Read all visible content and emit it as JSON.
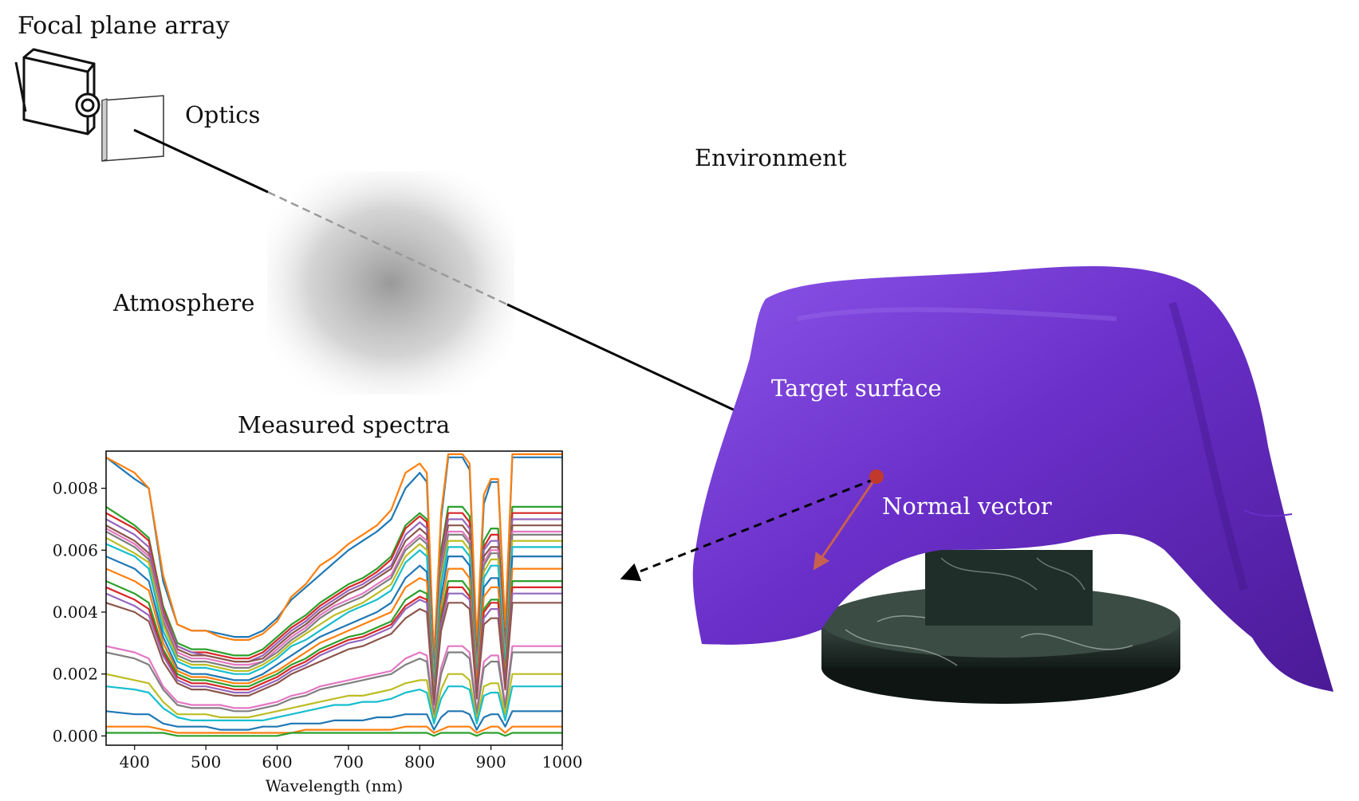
{
  "labels": {
    "focal_plane_array": "Focal plane array",
    "optics": "Optics",
    "environment": "Environment",
    "atmosphere": "Atmosphere",
    "target_surface": "Target surface",
    "normal_vector": "Normal vector",
    "measured_spectra": "Measured spectra"
  },
  "colors": {
    "cloth": "#6a2fc9",
    "cloth_light": "#8b55e8",
    "cloth_dark": "#4a1a96",
    "target_point": "#c0392b",
    "normal_arrow": "#c8604f",
    "marble": "#1f2e28",
    "atmosphere": "#8a8a8a"
  },
  "icons": {
    "camera": "camera-sketch-icon",
    "optics": "optics-plate-icon"
  },
  "chart_data": {
    "type": "line",
    "xlabel": "Wavelength (nm)",
    "ylabel": "",
    "xlim": [
      360,
      1000
    ],
    "ylim": [
      -0.0003,
      0.0092
    ],
    "xticks": [
      400,
      500,
      600,
      700,
      800,
      900,
      1000
    ],
    "yticks": [
      0.0,
      0.002,
      0.004,
      0.006,
      0.008
    ],
    "ytick_labels": [
      "0.000",
      "0.002",
      "0.004",
      "0.006",
      "0.008"
    ],
    "grid": false,
    "legend": "none",
    "series_colors": [
      "#1f77b4",
      "#ff7f0e",
      "#2ca02c",
      "#d62728",
      "#9467bd",
      "#8c564b",
      "#e377c2",
      "#7f7f7f",
      "#bcbd22",
      "#17becf"
    ],
    "x": [
      360,
      400,
      420,
      440,
      460,
      480,
      500,
      520,
      540,
      560,
      580,
      600,
      620,
      640,
      660,
      680,
      700,
      720,
      740,
      760,
      780,
      800,
      810,
      820,
      830,
      840,
      860,
      870,
      880,
      890,
      900,
      910,
      920,
      930,
      960,
      1000
    ],
    "series": [
      {
        "values": [
          0.009,
          0.0083,
          0.008,
          0.005,
          0.0036,
          0.0034,
          0.0034,
          0.0033,
          0.0032,
          0.0032,
          0.0034,
          0.0038,
          0.0044,
          0.0048,
          0.0052,
          0.0056,
          0.006,
          0.0063,
          0.0066,
          0.007,
          0.008,
          0.0085,
          0.0082,
          0.0024,
          0.007,
          0.009,
          0.009,
          0.0086,
          0.0028,
          0.0075,
          0.0082,
          0.0082,
          0.0034,
          0.009,
          0.009,
          0.009
        ]
      },
      {
        "values": [
          0.009,
          0.0085,
          0.008,
          0.0052,
          0.0036,
          0.0034,
          0.0034,
          0.0032,
          0.0031,
          0.0031,
          0.0033,
          0.0037,
          0.0045,
          0.0049,
          0.0055,
          0.0058,
          0.0062,
          0.0065,
          0.0068,
          0.0073,
          0.0085,
          0.0088,
          0.0085,
          0.0025,
          0.0072,
          0.0091,
          0.0091,
          0.0088,
          0.003,
          0.0078,
          0.0083,
          0.0083,
          0.0035,
          0.0091,
          0.0091,
          0.0091
        ]
      },
      {
        "values": [
          0.0074,
          0.0068,
          0.0064,
          0.0042,
          0.003,
          0.0028,
          0.0028,
          0.0027,
          0.0026,
          0.0026,
          0.0028,
          0.0032,
          0.0036,
          0.0039,
          0.0043,
          0.0046,
          0.0049,
          0.0051,
          0.0054,
          0.0058,
          0.0068,
          0.0072,
          0.007,
          0.002,
          0.006,
          0.0074,
          0.0074,
          0.0071,
          0.0024,
          0.0063,
          0.0067,
          0.0067,
          0.0028,
          0.0074,
          0.0074,
          0.0074
        ]
      },
      {
        "values": [
          0.0072,
          0.0067,
          0.0063,
          0.0041,
          0.0029,
          0.0027,
          0.0027,
          0.0026,
          0.0025,
          0.0025,
          0.0027,
          0.0031,
          0.0035,
          0.0038,
          0.0042,
          0.0045,
          0.0048,
          0.005,
          0.0053,
          0.0057,
          0.0067,
          0.0071,
          0.0069,
          0.0019,
          0.0058,
          0.0072,
          0.0072,
          0.0069,
          0.0023,
          0.0061,
          0.0065,
          0.0065,
          0.0027,
          0.0072,
          0.0072,
          0.0072
        ]
      },
      {
        "values": [
          0.007,
          0.0065,
          0.0061,
          0.004,
          0.0029,
          0.0027,
          0.0026,
          0.0025,
          0.0024,
          0.0024,
          0.0026,
          0.003,
          0.0034,
          0.0037,
          0.0041,
          0.0044,
          0.0047,
          0.0049,
          0.0052,
          0.0055,
          0.0065,
          0.0069,
          0.0067,
          0.0019,
          0.0057,
          0.007,
          0.007,
          0.0067,
          0.0022,
          0.006,
          0.0063,
          0.0063,
          0.0026,
          0.007,
          0.007,
          0.007
        ]
      },
      {
        "values": [
          0.0068,
          0.0063,
          0.0059,
          0.0039,
          0.0028,
          0.0026,
          0.0026,
          0.0025,
          0.0024,
          0.0024,
          0.0025,
          0.0029,
          0.0033,
          0.0036,
          0.004,
          0.0043,
          0.0046,
          0.0048,
          0.0051,
          0.0054,
          0.0063,
          0.0067,
          0.0065,
          0.0018,
          0.0055,
          0.0068,
          0.0068,
          0.0065,
          0.0021,
          0.0058,
          0.0061,
          0.0061,
          0.0025,
          0.0068,
          0.0068,
          0.0068
        ]
      },
      {
        "values": [
          0.0067,
          0.0062,
          0.0058,
          0.0038,
          0.0027,
          0.0025,
          0.0025,
          0.0024,
          0.0023,
          0.0023,
          0.0024,
          0.0028,
          0.0032,
          0.0035,
          0.0039,
          0.0042,
          0.0044,
          0.0046,
          0.0049,
          0.0052,
          0.0061,
          0.0065,
          0.0063,
          0.0017,
          0.0054,
          0.0066,
          0.0066,
          0.0063,
          0.002,
          0.0056,
          0.006,
          0.006,
          0.0024,
          0.0066,
          0.0066,
          0.0066
        ]
      },
      {
        "values": [
          0.0066,
          0.0061,
          0.0057,
          0.0037,
          0.0026,
          0.0024,
          0.0024,
          0.0023,
          0.0022,
          0.0022,
          0.0024,
          0.0027,
          0.0031,
          0.0034,
          0.0038,
          0.0041,
          0.0043,
          0.0045,
          0.0048,
          0.0051,
          0.006,
          0.0064,
          0.0062,
          0.0017,
          0.0053,
          0.0065,
          0.0065,
          0.0062,
          0.002,
          0.0055,
          0.0059,
          0.0059,
          0.0024,
          0.0065,
          0.0065,
          0.0065
        ]
      },
      {
        "values": [
          0.0064,
          0.0059,
          0.0056,
          0.0036,
          0.0025,
          0.0023,
          0.0023,
          0.0022,
          0.0021,
          0.0021,
          0.0023,
          0.0026,
          0.003,
          0.0033,
          0.0036,
          0.0039,
          0.0041,
          0.0043,
          0.0046,
          0.0049,
          0.0058,
          0.0062,
          0.006,
          0.0016,
          0.0051,
          0.0063,
          0.0063,
          0.006,
          0.0019,
          0.0053,
          0.0057,
          0.0057,
          0.0023,
          0.0063,
          0.0063,
          0.0063
        ]
      },
      {
        "values": [
          0.0062,
          0.0058,
          0.0054,
          0.0034,
          0.0024,
          0.0022,
          0.0022,
          0.0021,
          0.002,
          0.002,
          0.0022,
          0.0025,
          0.0029,
          0.0031,
          0.0034,
          0.0037,
          0.004,
          0.0042,
          0.0044,
          0.0047,
          0.0056,
          0.006,
          0.0058,
          0.0015,
          0.0049,
          0.0061,
          0.0061,
          0.0058,
          0.0018,
          0.0051,
          0.0055,
          0.0055,
          0.0022,
          0.0061,
          0.0061,
          0.0061
        ]
      },
      {
        "values": [
          0.0058,
          0.0054,
          0.005,
          0.0032,
          0.0022,
          0.002,
          0.002,
          0.0019,
          0.0018,
          0.0018,
          0.002,
          0.0023,
          0.0026,
          0.0029,
          0.0032,
          0.0034,
          0.0036,
          0.0038,
          0.004,
          0.0043,
          0.0051,
          0.0055,
          0.0053,
          0.0014,
          0.0045,
          0.0058,
          0.0058,
          0.0055,
          0.0017,
          0.0048,
          0.0051,
          0.0051,
          0.002,
          0.0058,
          0.0058,
          0.0058
        ]
      },
      {
        "values": [
          0.0054,
          0.005,
          0.0047,
          0.003,
          0.0021,
          0.0019,
          0.0019,
          0.0018,
          0.0017,
          0.0017,
          0.0019,
          0.0021,
          0.0024,
          0.0027,
          0.003,
          0.0032,
          0.0034,
          0.0036,
          0.0038,
          0.004,
          0.0048,
          0.0051,
          0.005,
          0.0013,
          0.0042,
          0.0054,
          0.0054,
          0.0051,
          0.0016,
          0.0045,
          0.0048,
          0.0048,
          0.0019,
          0.0054,
          0.0054,
          0.0054
        ]
      },
      {
        "values": [
          0.005,
          0.0046,
          0.0043,
          0.0028,
          0.002,
          0.0018,
          0.0018,
          0.0017,
          0.0016,
          0.0016,
          0.0018,
          0.002,
          0.0023,
          0.0025,
          0.0028,
          0.003,
          0.0032,
          0.0033,
          0.0035,
          0.0037,
          0.0044,
          0.0047,
          0.0046,
          0.0012,
          0.0039,
          0.005,
          0.005,
          0.0047,
          0.0014,
          0.0041,
          0.0044,
          0.0044,
          0.0018,
          0.005,
          0.005,
          0.005
        ]
      },
      {
        "values": [
          0.0048,
          0.0044,
          0.0041,
          0.0027,
          0.0019,
          0.0017,
          0.0017,
          0.0016,
          0.0015,
          0.0015,
          0.0017,
          0.0019,
          0.0022,
          0.0024,
          0.0027,
          0.0029,
          0.0031,
          0.0032,
          0.0034,
          0.0036,
          0.0042,
          0.0045,
          0.0044,
          0.0011,
          0.0037,
          0.0048,
          0.0048,
          0.0045,
          0.0014,
          0.004,
          0.0043,
          0.0043,
          0.0017,
          0.0048,
          0.0048,
          0.0048
        ]
      },
      {
        "values": [
          0.0046,
          0.0042,
          0.0039,
          0.0026,
          0.0018,
          0.0016,
          0.0016,
          0.0015,
          0.0014,
          0.0014,
          0.0016,
          0.0018,
          0.0021,
          0.0023,
          0.0026,
          0.0028,
          0.003,
          0.0031,
          0.0033,
          0.0035,
          0.0041,
          0.0044,
          0.0043,
          0.0011,
          0.0036,
          0.0046,
          0.0046,
          0.0044,
          0.0013,
          0.0038,
          0.0041,
          0.0041,
          0.0016,
          0.0046,
          0.0046,
          0.0046
        ]
      },
      {
        "values": [
          0.0043,
          0.004,
          0.0037,
          0.0024,
          0.0017,
          0.0015,
          0.0015,
          0.0014,
          0.0013,
          0.0013,
          0.0015,
          0.0017,
          0.002,
          0.0022,
          0.0024,
          0.0026,
          0.0028,
          0.0029,
          0.0031,
          0.0033,
          0.0038,
          0.0041,
          0.004,
          0.001,
          0.0034,
          0.0043,
          0.0043,
          0.0041,
          0.0012,
          0.0036,
          0.0038,
          0.0038,
          0.0015,
          0.0043,
          0.0043,
          0.0043
        ]
      },
      {
        "values": [
          0.0029,
          0.0027,
          0.0025,
          0.0016,
          0.0011,
          0.001,
          0.001,
          0.001,
          0.0009,
          0.0009,
          0.001,
          0.0011,
          0.0013,
          0.0014,
          0.0016,
          0.0017,
          0.0018,
          0.0019,
          0.002,
          0.0021,
          0.0025,
          0.0027,
          0.0026,
          0.0007,
          0.0022,
          0.0029,
          0.0029,
          0.0027,
          0.0008,
          0.0024,
          0.0026,
          0.0026,
          0.001,
          0.0029,
          0.0029,
          0.0029
        ]
      },
      {
        "values": [
          0.0027,
          0.0025,
          0.0023,
          0.0015,
          0.001,
          0.0009,
          0.0009,
          0.0009,
          0.0008,
          0.0008,
          0.0009,
          0.001,
          0.0012,
          0.0013,
          0.0015,
          0.0016,
          0.0017,
          0.0018,
          0.0019,
          0.002,
          0.0023,
          0.0025,
          0.0024,
          0.0006,
          0.002,
          0.0027,
          0.0027,
          0.0025,
          0.0007,
          0.0022,
          0.0024,
          0.0024,
          0.0009,
          0.0027,
          0.0027,
          0.0027
        ]
      },
      {
        "values": [
          0.002,
          0.0018,
          0.0017,
          0.0011,
          0.0007,
          0.0007,
          0.0007,
          0.0006,
          0.0006,
          0.0006,
          0.0007,
          0.0008,
          0.0009,
          0.001,
          0.0011,
          0.0012,
          0.0013,
          0.0013,
          0.0014,
          0.0015,
          0.0017,
          0.0018,
          0.0018,
          0.0005,
          0.0015,
          0.002,
          0.002,
          0.0018,
          0.0005,
          0.0016,
          0.0017,
          0.0017,
          0.0007,
          0.002,
          0.002,
          0.002
        ]
      },
      {
        "values": [
          0.0016,
          0.0015,
          0.0014,
          0.0009,
          0.0006,
          0.0005,
          0.0005,
          0.0005,
          0.0005,
          0.0005,
          0.0005,
          0.0006,
          0.0007,
          0.0008,
          0.0009,
          0.001,
          0.001,
          0.0011,
          0.0011,
          0.0012,
          0.0014,
          0.0015,
          0.0014,
          0.0004,
          0.0012,
          0.0016,
          0.0016,
          0.0015,
          0.0004,
          0.0013,
          0.0014,
          0.0014,
          0.0005,
          0.0016,
          0.0016,
          0.0016
        ]
      },
      {
        "values": [
          0.0008,
          0.0007,
          0.0007,
          0.0004,
          0.0003,
          0.0003,
          0.0003,
          0.0002,
          0.0002,
          0.0002,
          0.0003,
          0.0003,
          0.0004,
          0.0004,
          0.0004,
          0.0005,
          0.0005,
          0.0005,
          0.0006,
          0.0006,
          0.0007,
          0.0007,
          0.0007,
          0.0002,
          0.0006,
          0.0008,
          0.0008,
          0.0007,
          0.0002,
          0.0006,
          0.0007,
          0.0007,
          0.0003,
          0.0008,
          0.0008,
          0.0008
        ]
      },
      {
        "values": [
          0.0003,
          0.0003,
          0.0003,
          0.0002,
          0.0001,
          0.0001,
          0.0001,
          0.0001,
          0.0001,
          0.0001,
          0.0001,
          0.0001,
          0.0001,
          0.0002,
          0.0002,
          0.0002,
          0.0002,
          0.0002,
          0.0002,
          0.0002,
          0.0003,
          0.0003,
          0.0003,
          0.0001,
          0.0002,
          0.0003,
          0.0003,
          0.0003,
          0.0001,
          0.0002,
          0.0003,
          0.0003,
          0.0001,
          0.0003,
          0.0003,
          0.0003
        ]
      },
      {
        "values": [
          0.0001,
          0.0001,
          0.0001,
          0.0001,
          0.0,
          0.0,
          0.0,
          0.0,
          0.0,
          0.0,
          0.0,
          0.0,
          0.0001,
          0.0001,
          0.0001,
          0.0001,
          0.0001,
          0.0001,
          0.0001,
          0.0001,
          0.0001,
          0.0001,
          0.0001,
          0.0,
          0.0001,
          0.0001,
          0.0001,
          0.0001,
          0.0,
          0.0001,
          0.0001,
          0.0001,
          0.0,
          0.0001,
          0.0001,
          0.0001
        ]
      }
    ]
  }
}
